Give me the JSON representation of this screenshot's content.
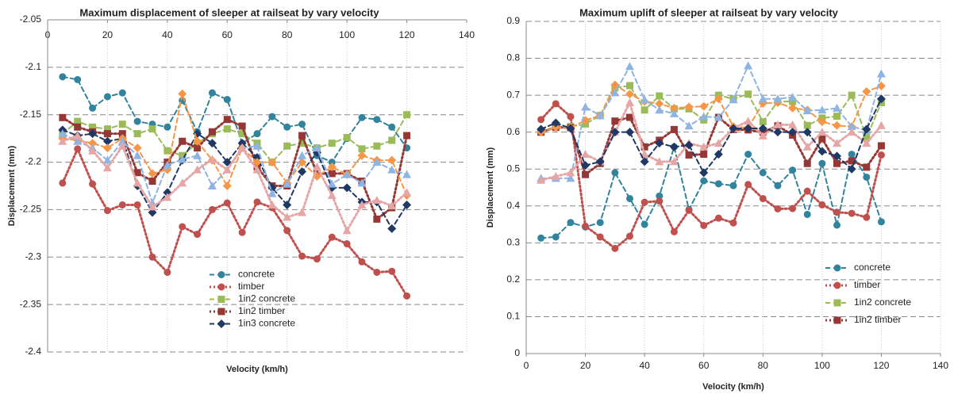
{
  "chart_data": [
    {
      "type": "line",
      "title": "Maximum displacement of sleeper at railseat by vary velocity",
      "x_label": "Velocity (km/h)",
      "y_label": "Displacement (mm)",
      "xlim": [
        0,
        140
      ],
      "xticks": [
        0,
        20,
        40,
        60,
        80,
        100,
        120,
        140
      ],
      "ylim": [
        -2.4,
        -2.05
      ],
      "yticks": [
        -2.4,
        -2.35,
        -2.3,
        -2.25,
        -2.2,
        -2.15,
        -2.1,
        -2.05
      ],
      "grid": true,
      "legend": "lower center",
      "x": [
        5,
        10,
        15,
        20,
        25,
        30,
        35,
        40,
        45,
        50,
        55,
        60,
        65,
        70,
        75,
        80,
        85,
        90,
        95,
        100,
        105,
        110,
        115,
        120
      ],
      "series": [
        {
          "name": "concrete",
          "color": "#31849b",
          "marker": "circle",
          "dash": "dashed",
          "values": [
            -2.11,
            -2.113,
            -2.143,
            -2.131,
            -2.127,
            -2.157,
            -2.16,
            -2.163,
            -2.135,
            -2.168,
            -2.127,
            -2.134,
            -2.18,
            -2.17,
            -2.152,
            -2.163,
            -2.16,
            -2.193,
            -2.2,
            -2.175,
            -2.153,
            -2.155,
            -2.163,
            -2.185
          ]
        },
        {
          "name": "timber",
          "color": "#c0504d",
          "marker": "circle",
          "dash": "dotted",
          "values": [
            -2.222,
            -2.186,
            -2.223,
            -2.251,
            -2.245,
            -2.245,
            -2.3,
            -2.316,
            -2.268,
            -2.276,
            -2.25,
            -2.243,
            -2.274,
            -2.242,
            -2.248,
            -2.272,
            -2.299,
            -2.302,
            -2.279,
            -2.286,
            -2.305,
            -2.316,
            -2.315,
            -2.341
          ]
        },
        {
          "name": "1in2 concrete",
          "color": "#9bbb59",
          "marker": "square",
          "dash": "dashed",
          "values": [
            -2.17,
            -2.157,
            -2.163,
            -2.165,
            -2.16,
            -2.17,
            -2.165,
            -2.188,
            -2.193,
            -2.18,
            -2.17,
            -2.165,
            -2.17,
            -2.18,
            -2.2,
            -2.183,
            -2.18,
            -2.185,
            -2.18,
            -2.174,
            -2.186,
            -2.183,
            -2.177,
            -2.15
          ]
        },
        {
          "name": "1in2 timber",
          "color": "#953735",
          "marker": "square",
          "dash": "dotted",
          "values": [
            -2.153,
            -2.163,
            -2.168,
            -2.17,
            -2.17,
            -2.211,
            -2.22,
            -2.2,
            -2.178,
            -2.185,
            -2.168,
            -2.155,
            -2.162,
            -2.205,
            -2.225,
            -2.225,
            -2.172,
            -2.212,
            -2.212,
            -2.212,
            -2.22,
            -2.26,
            -2.248,
            -2.172
          ]
        },
        {
          "name": "1in3 concrete",
          "color": "#1f3864",
          "marker": "diamond",
          "dash": "dashed",
          "values": [
            -2.166,
            -2.172,
            -2.17,
            -2.178,
            -2.175,
            -2.225,
            -2.253,
            -2.232,
            -2.198,
            -2.17,
            -2.18,
            -2.2,
            -2.18,
            -2.195,
            -2.227,
            -2.245,
            -2.21,
            -2.19,
            -2.227,
            -2.227,
            -2.242,
            -2.242,
            -2.27,
            -2.245
          ]
        },
        {
          "color": "#f79646",
          "marker": "diamond",
          "dash": "dashed",
          "values": [
            -2.175,
            -2.177,
            -2.18,
            -2.185,
            -2.175,
            -2.185,
            -2.212,
            -2.208,
            -2.128,
            -2.178,
            -2.198,
            -2.225,
            -2.185,
            -2.2,
            -2.2,
            -2.222,
            -2.2,
            -2.215,
            -2.205,
            -2.213,
            -2.193,
            -2.198,
            -2.198,
            -2.235
          ]
        },
        {
          "color": "#8eb4e3",
          "marker": "triangle",
          "dash": "dashed",
          "values": [
            -2.17,
            -2.178,
            -2.185,
            -2.198,
            -2.178,
            -2.193,
            -2.243,
            -2.203,
            -2.197,
            -2.193,
            -2.225,
            -2.208,
            -2.185,
            -2.183,
            -2.233,
            -2.223,
            -2.193,
            -2.185,
            -2.223,
            -2.213,
            -2.222,
            -2.2,
            -2.208,
            -2.213
          ]
        },
        {
          "color": "#e6a6a5",
          "marker": "triangle",
          "dash": "dotted",
          "values": [
            -2.178,
            -2.172,
            -2.188,
            -2.206,
            -2.183,
            -2.222,
            -2.247,
            -2.237,
            -2.222,
            -2.208,
            -2.197,
            -2.208,
            -2.185,
            -2.208,
            -2.245,
            -2.258,
            -2.253,
            -2.205,
            -2.235,
            -2.272,
            -2.245,
            -2.24,
            -2.246,
            -2.232
          ]
        }
      ]
    },
    {
      "type": "line",
      "title": "Maximum uplift of sleeper at railseat by vary velocity",
      "x_label": "Velocity (km/h)",
      "y_label": "Displacement (mm)",
      "xlim": [
        0,
        140
      ],
      "xticks": [
        0,
        20,
        40,
        60,
        80,
        100,
        120,
        140
      ],
      "ylim": [
        0,
        0.9
      ],
      "yticks": [
        0,
        0.1,
        0.2,
        0.3,
        0.4,
        0.5,
        0.6,
        0.7,
        0.8,
        0.9
      ],
      "grid": true,
      "legend": "lower right",
      "x": [
        5,
        10,
        15,
        20,
        25,
        30,
        35,
        40,
        45,
        50,
        55,
        60,
        65,
        70,
        75,
        80,
        85,
        90,
        95,
        100,
        105,
        110,
        115,
        120
      ],
      "series": [
        {
          "name": "concrete",
          "color": "#31849b",
          "marker": "circle",
          "dash": "dashed",
          "values": [
            0.313,
            0.316,
            0.355,
            0.343,
            0.355,
            0.49,
            0.42,
            0.35,
            0.427,
            0.56,
            0.39,
            0.468,
            0.46,
            0.455,
            0.54,
            0.49,
            0.455,
            0.497,
            0.377,
            0.515,
            0.348,
            0.54,
            0.478,
            0.357
          ]
        },
        {
          "name": "timber",
          "color": "#c0504d",
          "marker": "circle",
          "dash": "dotted",
          "values": [
            0.634,
            0.677,
            0.642,
            0.345,
            0.316,
            0.285,
            0.318,
            0.41,
            0.413,
            0.33,
            0.388,
            0.347,
            0.367,
            0.354,
            0.458,
            0.42,
            0.392,
            0.393,
            0.44,
            0.403,
            0.383,
            0.38,
            0.369,
            0.538
          ]
        },
        {
          "name": "1in2 concrete",
          "color": "#9bbb59",
          "marker": "square",
          "dash": "dashed",
          "values": [
            0.6,
            0.615,
            0.615,
            0.622,
            0.645,
            0.72,
            0.726,
            0.66,
            0.698,
            0.663,
            0.663,
            0.633,
            0.7,
            0.69,
            0.703,
            0.628,
            0.683,
            0.683,
            0.618,
            0.638,
            0.643,
            0.7,
            0.585,
            0.68
          ]
        },
        {
          "name": "1in2 timber",
          "color": "#953735",
          "marker": "square",
          "dash": "dotted",
          "values": [
            0.6,
            0.613,
            0.612,
            0.485,
            0.515,
            0.63,
            0.64,
            0.56,
            0.578,
            0.607,
            0.538,
            0.54,
            0.64,
            0.607,
            0.606,
            0.6,
            0.617,
            0.592,
            0.515,
            0.582,
            0.515,
            0.522,
            0.505,
            0.563
          ]
        },
        {
          "color": "#f79646",
          "marker": "diamond",
          "dash": "dashed",
          "values": [
            0.6,
            0.613,
            0.612,
            0.632,
            0.645,
            0.728,
            0.703,
            0.683,
            0.677,
            0.665,
            0.668,
            0.67,
            0.69,
            0.615,
            0.612,
            0.678,
            0.68,
            0.665,
            0.66,
            0.628,
            0.618,
            0.615,
            0.71,
            0.725
          ]
        },
        {
          "color": "#8eb4e3",
          "marker": "triangle",
          "dash": "dashed",
          "values": [
            0.475,
            0.475,
            0.475,
            0.668,
            0.645,
            0.707,
            0.778,
            0.688,
            0.66,
            0.65,
            0.617,
            0.642,
            0.64,
            0.688,
            0.78,
            0.69,
            0.69,
            0.695,
            0.658,
            0.66,
            0.665,
            0.615,
            0.605,
            0.758
          ]
        },
        {
          "color": "#e6a6a5",
          "marker": "triangle",
          "dash": "dotted",
          "values": [
            0.47,
            0.48,
            0.49,
            0.54,
            0.52,
            0.6,
            0.68,
            0.54,
            0.52,
            0.52,
            0.57,
            0.56,
            0.57,
            0.61,
            0.63,
            0.59,
            0.62,
            0.62,
            0.56,
            0.6,
            0.57,
            0.6,
            0.57,
            0.618
          ]
        },
        {
          "color": "#1f3864",
          "marker": "diamond",
          "dash": "dashed",
          "values": [
            0.608,
            0.625,
            0.61,
            0.51,
            0.52,
            0.6,
            0.6,
            0.52,
            0.57,
            0.56,
            0.565,
            0.49,
            0.54,
            0.61,
            0.61,
            0.61,
            0.6,
            0.6,
            0.6,
            0.548,
            0.535,
            0.5,
            0.608,
            0.69
          ]
        }
      ]
    }
  ]
}
